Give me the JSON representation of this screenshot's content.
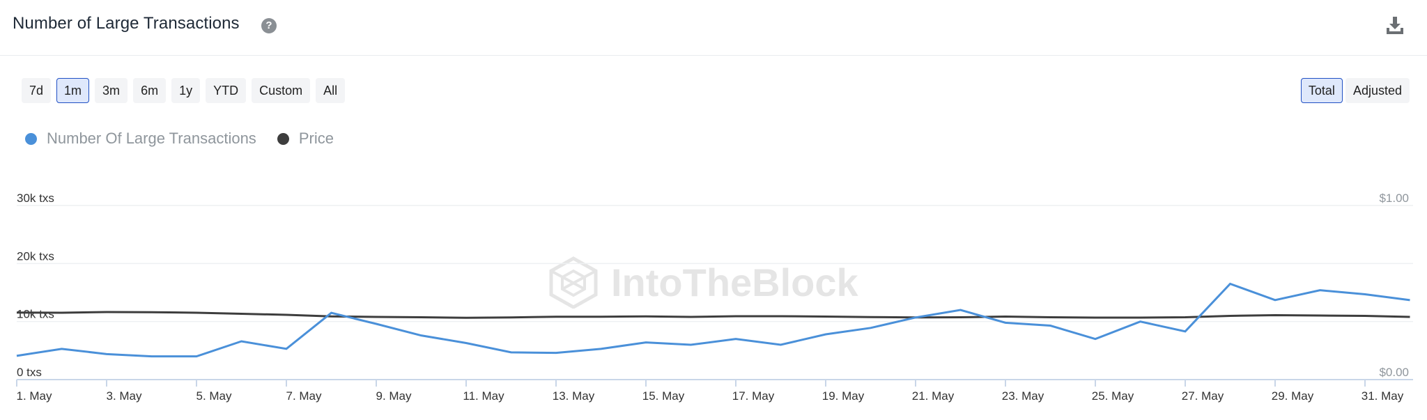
{
  "header": {
    "title": "Number of Large Transactions",
    "help_icon": "help-icon",
    "download_icon": "download-icon"
  },
  "range_buttons": [
    "7d",
    "1m",
    "3m",
    "6m",
    "1y",
    "YTD",
    "Custom",
    "All"
  ],
  "range_selected": "1m",
  "mode_buttons": [
    "Total",
    "Adjusted"
  ],
  "mode_selected": "Total",
  "watermark": "IntoTheBlock",
  "colors": {
    "transactions": "#4a90d9",
    "price": "#3d3d3d",
    "grid": "#eef0f2",
    "active_border": "#1f4fc4"
  },
  "chart_data": {
    "type": "line",
    "x": [
      "1. May",
      "2. May",
      "3. May",
      "4. May",
      "5. May",
      "6. May",
      "7. May",
      "8. May",
      "9. May",
      "10. May",
      "11. May",
      "12. May",
      "13. May",
      "14. May",
      "15. May",
      "16. May",
      "17. May",
      "18. May",
      "19. May",
      "20. May",
      "21. May",
      "22. May",
      "23. May",
      "24. May",
      "25. May",
      "26. May",
      "27. May",
      "28. May",
      "29. May",
      "30. May",
      "31. May",
      "1. Jun"
    ],
    "x_tick_labels": [
      "1. May",
      "3. May",
      "5. May",
      "7. May",
      "9. May",
      "11. May",
      "13. May",
      "15. May",
      "17. May",
      "19. May",
      "21. May",
      "23. May",
      "25. May",
      "27. May",
      "29. May",
      "31. May"
    ],
    "series": [
      {
        "name": "Number Of Large Transactions",
        "axis": "left",
        "values": [
          4100,
          5300,
          4400,
          4000,
          4000,
          6600,
          5300,
          11500,
          9600,
          7600,
          6300,
          4700,
          4600,
          5300,
          6400,
          6000,
          7000,
          6000,
          7800,
          8900,
          10700,
          12000,
          9800,
          9300,
          7000,
          10000,
          8300,
          16500,
          13700,
          15400,
          14700,
          13700
        ]
      },
      {
        "name": "Price",
        "axis": "right",
        "values": [
          0.385,
          0.384,
          0.388,
          0.387,
          0.384,
          0.378,
          0.372,
          0.363,
          0.36,
          0.358,
          0.355,
          0.357,
          0.361,
          0.361,
          0.363,
          0.36,
          0.364,
          0.364,
          0.362,
          0.359,
          0.357,
          0.358,
          0.362,
          0.358,
          0.356,
          0.356,
          0.358,
          0.366,
          0.37,
          0.368,
          0.366,
          0.36
        ]
      }
    ],
    "y_left": {
      "ticks": [
        "0 txs",
        "10k txs",
        "20k txs",
        "30k txs"
      ],
      "ylim": [
        0,
        30000
      ]
    },
    "y_right": {
      "ticks": [
        "$0.00",
        "$1.00"
      ],
      "ylim": [
        0,
        1
      ]
    },
    "legend": {
      "position": "top-left"
    },
    "grid": true
  }
}
